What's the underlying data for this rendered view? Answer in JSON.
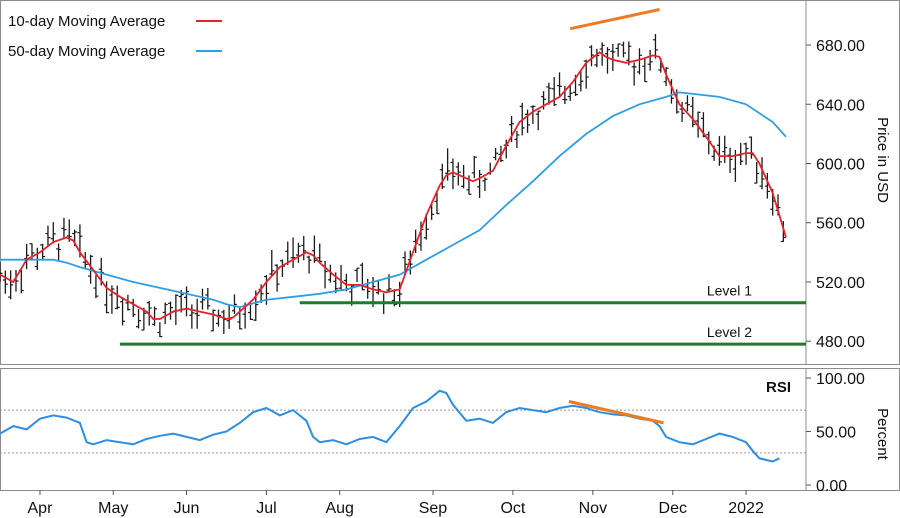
{
  "colors": {
    "ma10": "#e8212a",
    "ma50": "#2e9ee6",
    "bars": "#1a1a1a",
    "support": "#1f7a2e",
    "divergence": "#f07a22",
    "rsi": "#2e8fe0",
    "rsi_guides": "#9a9a9a",
    "panel_border": "#8c8c8c"
  },
  "chart_data": {
    "type": "line",
    "price_panel": {
      "ylabel": "Price in USD",
      "ylim": [
        470,
        705
      ],
      "yticks": [
        "680.00",
        "640.00",
        "600.00",
        "560.00",
        "520.00",
        "480.00"
      ],
      "ytick_values": [
        680,
        640,
        600,
        560,
        520,
        480
      ],
      "legend": [
        {
          "label": "10-day Moving Average",
          "color_key": "ma10"
        },
        {
          "label": "50-day Moving Average",
          "color_key": "ma50"
        }
      ],
      "legend_placement": "top-left",
      "ma10_series": [
        [
          0,
          525
        ],
        [
          10,
          520
        ],
        [
          20,
          535
        ],
        [
          30,
          540
        ],
        [
          40,
          547
        ],
        [
          50,
          550
        ],
        [
          55,
          548
        ],
        [
          60,
          540
        ],
        [
          70,
          528
        ],
        [
          80,
          516
        ],
        [
          90,
          510
        ],
        [
          100,
          505
        ],
        [
          110,
          500
        ],
        [
          115,
          495
        ],
        [
          120,
          495
        ],
        [
          130,
          500
        ],
        [
          140,
          502
        ],
        [
          150,
          500
        ],
        [
          160,
          498
        ],
        [
          170,
          495
        ],
        [
          175,
          496
        ],
        [
          180,
          500
        ],
        [
          190,
          508
        ],
        [
          200,
          520
        ],
        [
          210,
          530
        ],
        [
          220,
          535
        ],
        [
          230,
          540
        ],
        [
          235,
          538
        ],
        [
          240,
          533
        ],
        [
          250,
          525
        ],
        [
          260,
          518
        ],
        [
          270,
          518
        ],
        [
          280,
          515
        ],
        [
          290,
          513
        ],
        [
          300,
          515
        ],
        [
          310,
          540
        ],
        [
          320,
          565
        ],
        [
          330,
          585
        ],
        [
          335,
          592
        ],
        [
          340,
          594
        ],
        [
          350,
          590
        ],
        [
          355,
          588
        ],
        [
          360,
          590
        ],
        [
          370,
          595
        ],
        [
          380,
          612
        ],
        [
          390,
          628
        ],
        [
          400,
          635
        ],
        [
          410,
          640
        ],
        [
          420,
          645
        ],
        [
          430,
          655
        ],
        [
          440,
          668
        ],
        [
          450,
          675
        ],
        [
          455,
          672
        ],
        [
          460,
          670
        ],
        [
          470,
          668
        ],
        [
          480,
          670
        ],
        [
          490,
          673
        ],
        [
          495,
          672
        ],
        [
          500,
          660
        ],
        [
          510,
          640
        ],
        [
          520,
          630
        ],
        [
          530,
          618
        ],
        [
          540,
          605
        ],
        [
          550,
          605
        ],
        [
          560,
          607
        ],
        [
          565,
          607
        ],
        [
          570,
          600
        ],
        [
          580,
          580
        ],
        [
          585,
          565
        ],
        [
          590,
          550
        ]
      ],
      "ma50_series": [
        [
          0,
          535
        ],
        [
          20,
          535
        ],
        [
          40,
          535
        ],
        [
          50,
          533
        ],
        [
          60,
          530
        ],
        [
          80,
          525
        ],
        [
          100,
          520
        ],
        [
          120,
          516
        ],
        [
          140,
          512
        ],
        [
          160,
          508
        ],
        [
          170,
          505
        ],
        [
          180,
          503
        ],
        [
          200,
          508
        ],
        [
          220,
          510
        ],
        [
          240,
          512
        ],
        [
          260,
          515
        ],
        [
          280,
          520
        ],
        [
          300,
          525
        ],
        [
          320,
          535
        ],
        [
          340,
          545
        ],
        [
          360,
          555
        ],
        [
          380,
          572
        ],
        [
          400,
          588
        ],
        [
          420,
          605
        ],
        [
          440,
          620
        ],
        [
          460,
          632
        ],
        [
          480,
          640
        ],
        [
          500,
          645
        ],
        [
          510,
          648
        ],
        [
          520,
          647
        ],
        [
          540,
          645
        ],
        [
          560,
          640
        ],
        [
          580,
          628
        ],
        [
          590,
          618
        ]
      ],
      "price_bars_spec": {
        "x_start": 0,
        "x_end": 590,
        "step": 4,
        "follows": "ma10",
        "amplitude": 10
      },
      "support_levels": [
        {
          "label": "Level 1",
          "price": 506,
          "x_from": 225,
          "x_to": 605
        },
        {
          "label": "Level 2",
          "price": 478,
          "x_from": 90,
          "x_to": 605
        }
      ],
      "divergence_line": [
        [
          428,
          691
        ],
        [
          495,
          704
        ]
      ]
    },
    "rsi_panel": {
      "title": "RSI",
      "ylabel": "Percent",
      "ylim": [
        0,
        100
      ],
      "yticks": [
        "100.00",
        "50.00",
        "0.00"
      ],
      "ytick_values": [
        100,
        50,
        0
      ],
      "guides": [
        70,
        30
      ],
      "series": [
        [
          0,
          48
        ],
        [
          10,
          55
        ],
        [
          20,
          52
        ],
        [
          30,
          62
        ],
        [
          40,
          65
        ],
        [
          50,
          63
        ],
        [
          60,
          58
        ],
        [
          65,
          40
        ],
        [
          70,
          38
        ],
        [
          80,
          42
        ],
        [
          90,
          40
        ],
        [
          100,
          38
        ],
        [
          110,
          43
        ],
        [
          120,
          46
        ],
        [
          130,
          48
        ],
        [
          140,
          45
        ],
        [
          150,
          42
        ],
        [
          160,
          47
        ],
        [
          170,
          50
        ],
        [
          180,
          58
        ],
        [
          190,
          68
        ],
        [
          200,
          72
        ],
        [
          210,
          65
        ],
        [
          220,
          70
        ],
        [
          230,
          60
        ],
        [
          235,
          45
        ],
        [
          240,
          40
        ],
        [
          250,
          42
        ],
        [
          260,
          38
        ],
        [
          270,
          43
        ],
        [
          280,
          45
        ],
        [
          290,
          40
        ],
        [
          300,
          55
        ],
        [
          310,
          72
        ],
        [
          320,
          78
        ],
        [
          330,
          88
        ],
        [
          335,
          86
        ],
        [
          340,
          75
        ],
        [
          350,
          60
        ],
        [
          360,
          62
        ],
        [
          370,
          58
        ],
        [
          380,
          68
        ],
        [
          390,
          72
        ],
        [
          400,
          70
        ],
        [
          410,
          68
        ],
        [
          420,
          72
        ],
        [
          430,
          74
        ],
        [
          440,
          72
        ],
        [
          450,
          68
        ],
        [
          460,
          66
        ],
        [
          470,
          65
        ],
        [
          480,
          62
        ],
        [
          490,
          60
        ],
        [
          495,
          55
        ],
        [
          500,
          45
        ],
        [
          510,
          40
        ],
        [
          520,
          38
        ],
        [
          530,
          43
        ],
        [
          540,
          48
        ],
        [
          550,
          45
        ],
        [
          560,
          40
        ],
        [
          565,
          32
        ],
        [
          570,
          25
        ],
        [
          580,
          22
        ],
        [
          585,
          25
        ]
      ],
      "divergence_line": [
        [
          427,
          78
        ],
        [
          498,
          58
        ]
      ]
    },
    "x_axis": {
      "tick_labels": [
        "Apr",
        "May",
        "Jun",
        "Jul",
        "Aug",
        "Sep",
        "Oct",
        "Nov",
        "Dec",
        "2022"
      ],
      "tick_positions": [
        30,
        85,
        140,
        200,
        255,
        325,
        385,
        445,
        505,
        560
      ]
    }
  }
}
